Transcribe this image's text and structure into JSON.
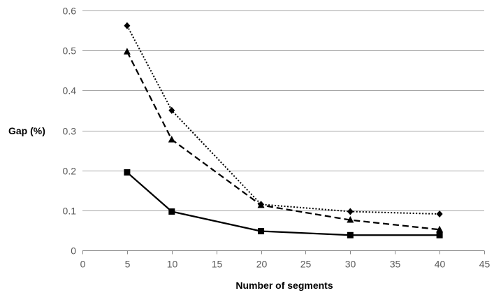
{
  "chart_data": {
    "type": "line",
    "title": "",
    "xlabel": "Number of segments",
    "ylabel": "Gap (%)",
    "xlim": [
      0,
      45
    ],
    "ylim": [
      0,
      0.6
    ],
    "x_ticks": [
      "0",
      "5",
      "10",
      "15",
      "20",
      "25",
      "30",
      "35",
      "40",
      "45"
    ],
    "y_ticks": [
      "0",
      "0.1",
      "0.2",
      "0.3",
      "0.4",
      "0.5",
      "0.6"
    ],
    "grid": "horizontal",
    "legend": "none",
    "series": [
      {
        "marker": "diamond",
        "line_style": "dotted",
        "color": "#000000",
        "x": [
          5,
          10,
          20,
          30,
          40
        ],
        "y": [
          0.562,
          0.35,
          0.115,
          0.097,
          0.091
        ]
      },
      {
        "marker": "triangle",
        "line_style": "dashed",
        "color": "#000000",
        "x": [
          5,
          10,
          20,
          30,
          40
        ],
        "y": [
          0.497,
          0.277,
          0.113,
          0.076,
          0.052
        ]
      },
      {
        "marker": "square",
        "line_style": "solid",
        "color": "#000000",
        "x": [
          5,
          10,
          20,
          30,
          40
        ],
        "y": [
          0.195,
          0.097,
          0.048,
          0.038,
          0.038
        ]
      }
    ]
  }
}
